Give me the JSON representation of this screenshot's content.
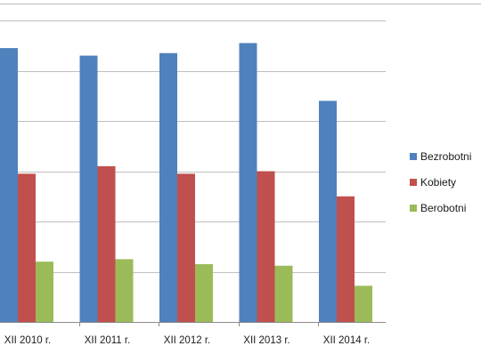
{
  "chart_data": {
    "type": "bar",
    "categories": [
      "XII 2010 r.",
      "XII 2011 r.",
      "XII 2012 r.",
      "XII 2013 r.",
      "XII 2014 r."
    ],
    "series": [
      {
        "name": "Bezrobotni",
        "color": "#4F81BD",
        "values": [
          5.45,
          5.3,
          5.35,
          5.55,
          4.4
        ]
      },
      {
        "name": "Kobiety",
        "color": "#C0504D",
        "values": [
          2.95,
          3.1,
          2.95,
          3.0,
          2.5
        ]
      },
      {
        "name": "Berobotni",
        "color": "#9BBB59",
        "values": [
          1.2,
          1.25,
          1.15,
          1.12,
          0.72
        ]
      }
    ],
    "ylim": [
      0,
      6
    ],
    "grid": true,
    "legend_position": "right"
  }
}
